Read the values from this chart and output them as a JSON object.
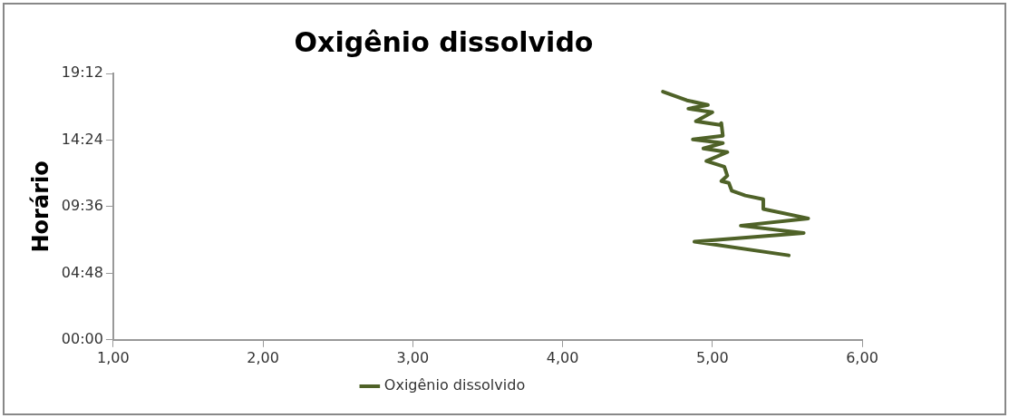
{
  "chart_data": {
    "type": "line",
    "title": "Oxigênio dissolvido",
    "ylabel": "Horário",
    "x": [
      5.51,
      4.88,
      5.61,
      5.19,
      5.64,
      5.34,
      5.34,
      5.22,
      5.13,
      5.11,
      5.06,
      5.1,
      5.08,
      4.96,
      5.1,
      4.94,
      5.07,
      4.87,
      5.07,
      5.06,
      5.05,
      4.89,
      5.0,
      4.84,
      4.97,
      4.83,
      4.67
    ],
    "series": [
      {
        "name": "Oxigênio dissolvido",
        "color": "#4f6228",
        "values": [
          6.09,
          7.08,
          7.7,
          8.23,
          8.75,
          9.43,
          10.13,
          10.4,
          10.74,
          11.31,
          11.44,
          11.83,
          12.48,
          12.88,
          13.53,
          13.79,
          14.18,
          14.44,
          14.71,
          15.62,
          15.49,
          15.75,
          16.4,
          16.66,
          16.93,
          17.26,
          17.89
        ]
      }
    ],
    "xlim": [
      1,
      6
    ],
    "xticks": [
      {
        "value": 1,
        "label": "1,00"
      },
      {
        "value": 2,
        "label": "2,00"
      },
      {
        "value": 3,
        "label": "3,00"
      },
      {
        "value": 4,
        "label": "4,00"
      },
      {
        "value": 5,
        "label": "5,00"
      },
      {
        "value": 6,
        "label": "6,00"
      }
    ],
    "ylim": [
      0,
      19.2
    ],
    "yticks": [
      {
        "value": 0,
        "label": "00:00"
      },
      {
        "value": 4.8,
        "label": "04:48"
      },
      {
        "value": 9.6,
        "label": "09:36"
      },
      {
        "value": 14.4,
        "label": "14:24"
      },
      {
        "value": 19.2,
        "label": "19:12"
      }
    ],
    "legend": "bottom",
    "marker": "none",
    "line_style": "solid",
    "grid": false
  }
}
